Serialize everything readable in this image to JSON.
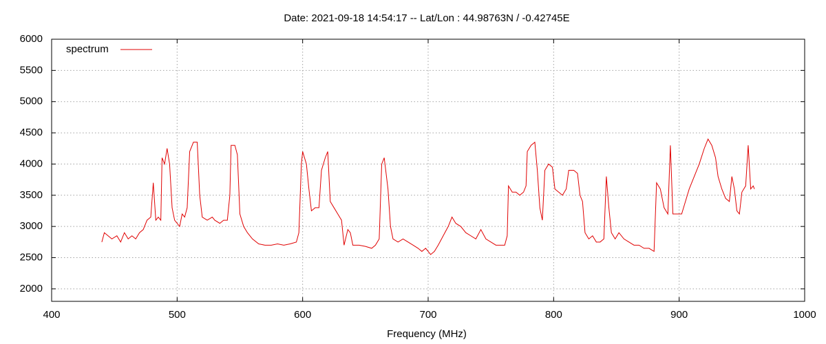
{
  "chart_data": {
    "type": "line",
    "title": "Date: 2021-09-18 14:54:17  --  Lat/Lon : 44.98763N / -0.42745E",
    "x_label": "Frequency (MHz)",
    "xlim": [
      400,
      1000
    ],
    "xticks": [
      400,
      500,
      600,
      700,
      800,
      900,
      1000
    ],
    "ylim": [
      1800,
      6000
    ],
    "yticks": [
      2000,
      2500,
      3000,
      3500,
      4000,
      4500,
      5000,
      5500,
      6000
    ],
    "grid": true,
    "legend": "top left",
    "x": [
      440,
      442,
      445,
      448,
      452,
      455,
      458,
      461,
      464,
      467,
      470,
      473,
      476,
      479,
      481,
      483,
      485,
      487,
      488,
      490,
      492,
      494,
      496,
      498,
      500,
      502,
      504,
      506,
      508,
      510,
      513,
      516,
      518,
      520,
      524,
      528,
      530,
      534,
      537,
      540,
      542,
      543,
      546,
      548,
      550,
      553,
      556,
      560,
      565,
      570,
      575,
      580,
      585,
      590,
      595,
      597,
      599,
      600,
      603,
      605,
      607,
      610,
      613,
      615,
      618,
      620,
      622,
      625,
      628,
      631,
      633,
      636,
      638,
      640,
      645,
      650,
      655,
      658,
      661,
      663,
      665,
      668,
      670,
      672,
      676,
      680,
      684,
      688,
      692,
      695,
      698,
      702,
      705,
      708,
      712,
      716,
      719,
      722,
      726,
      730,
      734,
      738,
      742,
      746,
      750,
      754,
      758,
      761,
      763,
      764,
      767,
      770,
      773,
      776,
      778,
      779,
      782,
      785,
      787,
      789,
      791,
      793,
      796,
      799,
      801,
      804,
      807,
      810,
      812,
      816,
      819,
      821,
      823,
      825,
      828,
      831,
      834,
      837,
      840,
      842,
      844,
      846,
      849,
      852,
      856,
      860,
      864,
      868,
      872,
      876,
      880,
      882,
      885,
      888,
      891,
      893,
      895,
      898,
      902,
      905,
      908,
      912,
      916,
      920,
      923,
      926,
      929,
      931,
      934,
      937,
      940,
      942,
      944,
      946,
      948,
      950,
      953,
      955,
      957,
      959,
      960
    ],
    "series": [
      {
        "name": "spectrum",
        "color": "#e00000",
        "values": [
          2750,
          2900,
          2850,
          2800,
          2850,
          2750,
          2900,
          2800,
          2850,
          2800,
          2900,
          2950,
          3100,
          3150,
          3700,
          3100,
          3150,
          3100,
          4100,
          4000,
          4250,
          4000,
          3300,
          3100,
          3050,
          3000,
          3200,
          3150,
          3300,
          4200,
          4350,
          4350,
          3500,
          3150,
          3100,
          3150,
          3100,
          3050,
          3100,
          3100,
          3500,
          4300,
          4300,
          4150,
          3200,
          3000,
          2900,
          2800,
          2720,
          2700,
          2700,
          2720,
          2700,
          2720,
          2750,
          2900,
          4000,
          4200,
          4000,
          3600,
          3250,
          3300,
          3300,
          3900,
          4100,
          4200,
          3400,
          3300,
          3200,
          3100,
          2700,
          2950,
          2900,
          2700,
          2700,
          2680,
          2650,
          2700,
          2800,
          4000,
          4100,
          3600,
          3000,
          2800,
          2750,
          2800,
          2750,
          2700,
          2650,
          2600,
          2650,
          2550,
          2600,
          2700,
          2850,
          3000,
          3150,
          3050,
          3000,
          2900,
          2850,
          2800,
          2950,
          2800,
          2750,
          2700,
          2700,
          2700,
          2850,
          3650,
          3550,
          3550,
          3500,
          3550,
          3650,
          4200,
          4300,
          4350,
          3900,
          3300,
          3100,
          3900,
          4000,
          3950,
          3600,
          3550,
          3500,
          3600,
          3900,
          3900,
          3850,
          3500,
          3400,
          2900,
          2800,
          2850,
          2750,
          2750,
          2800,
          3800,
          3300,
          2900,
          2800,
          2900,
          2800,
          2750,
          2700,
          2700,
          2650,
          2650,
          2600,
          3700,
          3600,
          3300,
          3200,
          4300,
          3200,
          3200,
          3200,
          3400,
          3600,
          3800,
          4000,
          4250,
          4400,
          4300,
          4100,
          3800,
          3600,
          3450,
          3400,
          3800,
          3600,
          3250,
          3200,
          3550,
          3650,
          4300,
          3600,
          3650,
          3600
        ]
      }
    ]
  }
}
